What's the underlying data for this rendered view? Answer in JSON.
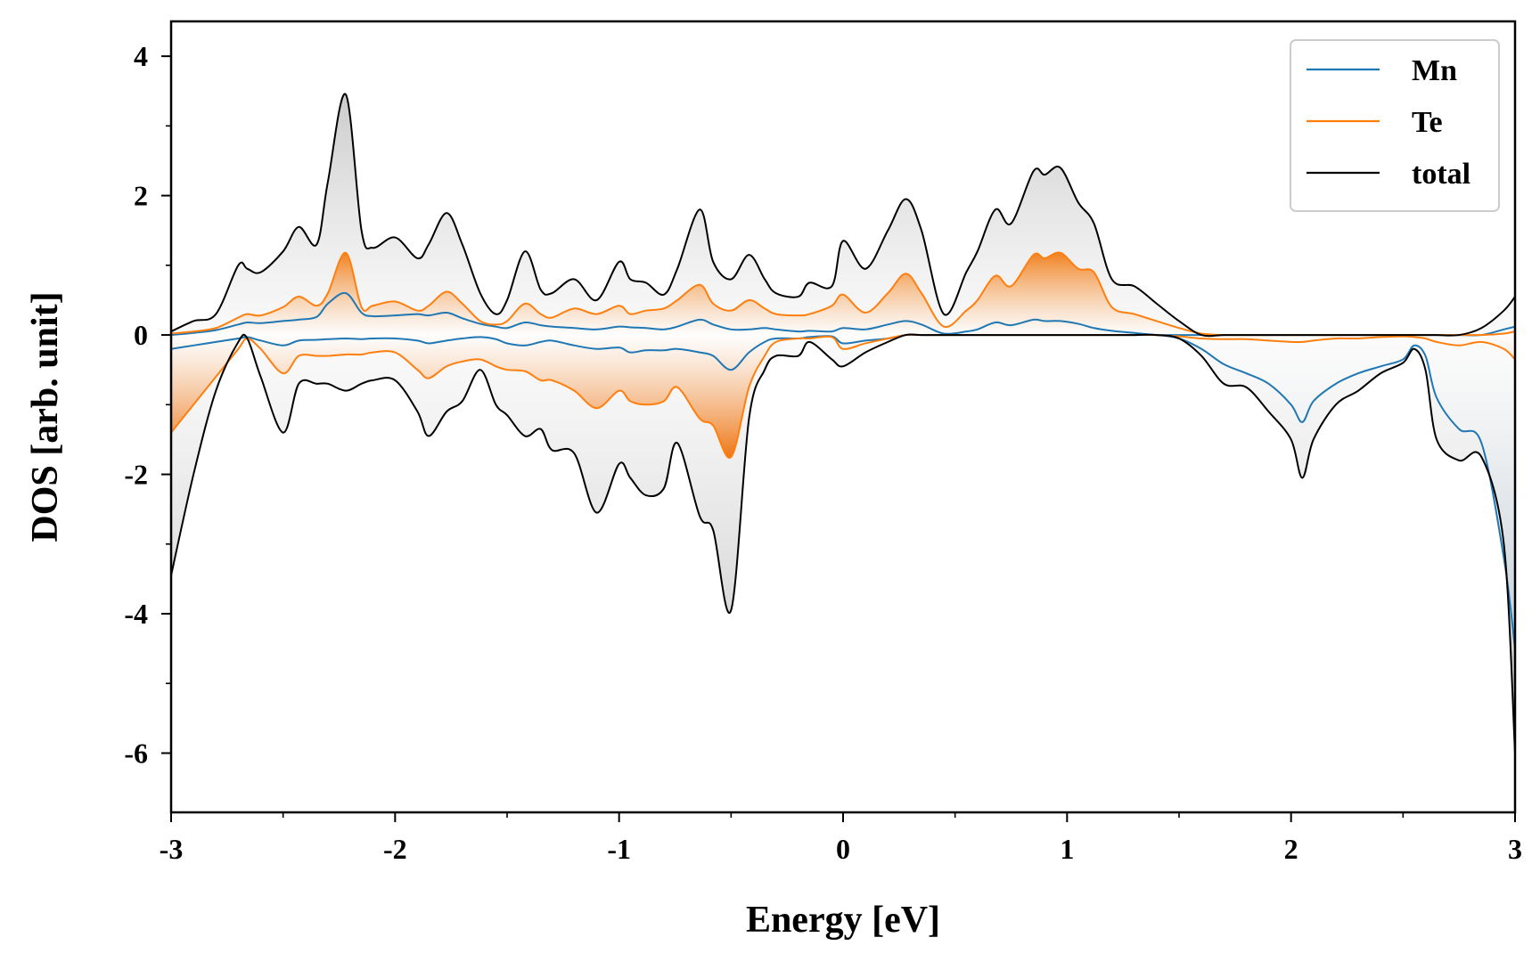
{
  "chart_data": {
    "type": "line",
    "title": "",
    "xlabel": "Energy [eV]",
    "ylabel": "DOS [arb. unit]",
    "xlim": [
      -3,
      3
    ],
    "ylim": [
      -6.85,
      4.5
    ],
    "xticks": [
      -3,
      -2,
      -1,
      0,
      1,
      2,
      3
    ],
    "xtick_labels": [
      "-3",
      "-2",
      "-1",
      "0",
      "1",
      "2",
      "3"
    ],
    "yticks": [
      -6,
      -4,
      -2,
      0,
      2,
      4
    ],
    "ytick_labels": [
      "-6",
      "-4",
      "-2",
      "0",
      "2",
      "4"
    ],
    "legend_position": "top-right",
    "x": [
      -3.0,
      -2.9,
      -2.8,
      -2.7,
      -2.66,
      -2.6,
      -2.5,
      -2.43,
      -2.35,
      -2.3,
      -2.22,
      -2.15,
      -2.1,
      -2.0,
      -1.9,
      -1.85,
      -1.77,
      -1.7,
      -1.62,
      -1.55,
      -1.5,
      -1.42,
      -1.35,
      -1.3,
      -1.2,
      -1.1,
      -1.0,
      -0.95,
      -0.88,
      -0.8,
      -0.74,
      -0.64,
      -0.58,
      -0.5,
      -0.42,
      -0.35,
      -0.3,
      -0.2,
      -0.15,
      -0.05,
      0.0,
      0.1,
      0.2,
      0.28,
      0.35,
      0.45,
      0.55,
      0.6,
      0.68,
      0.75,
      0.85,
      0.9,
      0.97,
      1.05,
      1.12,
      1.2,
      1.3,
      1.4,
      1.5,
      1.6,
      1.7,
      1.8,
      1.9,
      2.0,
      2.05,
      2.1,
      2.2,
      2.3,
      2.4,
      2.5,
      2.55,
      2.6,
      2.65,
      2.75,
      2.85,
      2.95,
      3.0
    ],
    "series": [
      {
        "name": "Mn",
        "color": "#1f77b4",
        "up": [
          0.0,
          0.03,
          0.07,
          0.15,
          0.18,
          0.17,
          0.2,
          0.22,
          0.26,
          0.45,
          0.6,
          0.32,
          0.27,
          0.28,
          0.3,
          0.28,
          0.32,
          0.24,
          0.16,
          0.12,
          0.1,
          0.18,
          0.14,
          0.12,
          0.1,
          0.08,
          0.12,
          0.11,
          0.1,
          0.08,
          0.12,
          0.22,
          0.15,
          0.08,
          0.08,
          0.1,
          0.08,
          0.05,
          0.06,
          0.05,
          0.1,
          0.08,
          0.15,
          0.2,
          0.15,
          0.02,
          0.05,
          0.08,
          0.18,
          0.14,
          0.22,
          0.2,
          0.2,
          0.16,
          0.1,
          0.06,
          0.03,
          0.0,
          0.0,
          0.0,
          0.0,
          0.0,
          0.0,
          0.0,
          0.0,
          0.0,
          0.0,
          0.0,
          0.0,
          0.0,
          0.0,
          0.0,
          0.0,
          0.0,
          0.0,
          0.08,
          0.12
        ],
        "down": [
          -0.2,
          -0.15,
          -0.1,
          -0.05,
          -0.03,
          -0.08,
          -0.15,
          -0.08,
          -0.07,
          -0.06,
          -0.05,
          -0.06,
          -0.05,
          -0.05,
          -0.08,
          -0.12,
          -0.08,
          -0.05,
          -0.03,
          -0.06,
          -0.12,
          -0.15,
          -0.1,
          -0.08,
          -0.15,
          -0.2,
          -0.18,
          -0.25,
          -0.22,
          -0.22,
          -0.2,
          -0.25,
          -0.3,
          -0.5,
          -0.25,
          -0.1,
          -0.05,
          -0.05,
          -0.03,
          -0.02,
          -0.12,
          -0.08,
          -0.05,
          0.0,
          0.0,
          0.0,
          0.0,
          0.0,
          0.0,
          0.0,
          0.0,
          0.0,
          0.0,
          0.0,
          0.0,
          0.0,
          0.0,
          0.0,
          -0.05,
          -0.2,
          -0.42,
          -0.55,
          -0.7,
          -1.0,
          -1.25,
          -0.95,
          -0.7,
          -0.55,
          -0.45,
          -0.35,
          -0.15,
          -0.3,
          -0.9,
          -1.35,
          -1.55,
          -3.2,
          -4.5
        ]
      },
      {
        "name": "Te",
        "color": "#ff7f0e",
        "up": [
          0.02,
          0.05,
          0.1,
          0.25,
          0.3,
          0.28,
          0.4,
          0.55,
          0.42,
          0.6,
          1.18,
          0.4,
          0.42,
          0.48,
          0.35,
          0.42,
          0.62,
          0.45,
          0.2,
          0.15,
          0.2,
          0.45,
          0.3,
          0.25,
          0.38,
          0.3,
          0.42,
          0.3,
          0.35,
          0.38,
          0.5,
          0.72,
          0.45,
          0.35,
          0.5,
          0.38,
          0.3,
          0.28,
          0.3,
          0.42,
          0.58,
          0.32,
          0.6,
          0.88,
          0.6,
          0.12,
          0.35,
          0.5,
          0.85,
          0.7,
          1.15,
          1.1,
          1.18,
          0.95,
          0.9,
          0.4,
          0.3,
          0.2,
          0.1,
          0.02,
          0.0,
          0.0,
          0.0,
          0.0,
          0.0,
          0.0,
          0.0,
          0.0,
          0.0,
          0.0,
          0.0,
          0.0,
          0.0,
          0.0,
          0.0,
          0.02,
          0.05
        ],
        "down": [
          -1.4,
          -1.0,
          -0.6,
          -0.2,
          -0.05,
          -0.2,
          -0.55,
          -0.3,
          -0.3,
          -0.3,
          -0.28,
          -0.28,
          -0.25,
          -0.25,
          -0.5,
          -0.62,
          -0.45,
          -0.38,
          -0.35,
          -0.45,
          -0.5,
          -0.52,
          -0.65,
          -0.65,
          -0.8,
          -1.05,
          -0.8,
          -0.95,
          -1.0,
          -0.95,
          -0.75,
          -1.2,
          -1.3,
          -1.75,
          -0.75,
          -0.3,
          -0.1,
          -0.05,
          -0.05,
          -0.03,
          -0.2,
          -0.12,
          -0.05,
          0.0,
          0.0,
          0.0,
          0.0,
          0.0,
          0.0,
          0.0,
          0.0,
          0.0,
          0.0,
          0.0,
          0.0,
          0.0,
          0.0,
          0.0,
          -0.02,
          -0.05,
          -0.06,
          -0.06,
          -0.08,
          -0.1,
          -0.1,
          -0.08,
          -0.05,
          -0.05,
          -0.03,
          -0.02,
          -0.03,
          -0.05,
          -0.1,
          -0.15,
          -0.1,
          -0.2,
          -0.35
        ]
      },
      {
        "name": "total",
        "color": "#000000",
        "up": [
          0.05,
          0.2,
          0.3,
          1.0,
          0.95,
          0.9,
          1.2,
          1.55,
          1.3,
          2.2,
          3.45,
          1.5,
          1.25,
          1.4,
          1.1,
          1.3,
          1.75,
          1.3,
          0.6,
          0.3,
          0.5,
          1.2,
          0.65,
          0.6,
          0.8,
          0.5,
          1.05,
          0.8,
          0.75,
          0.58,
          0.95,
          1.8,
          1.05,
          0.8,
          1.15,
          0.8,
          0.6,
          0.55,
          0.75,
          0.7,
          1.35,
          0.95,
          1.5,
          1.95,
          1.5,
          0.3,
          0.9,
          1.2,
          1.8,
          1.6,
          2.35,
          2.3,
          2.4,
          1.9,
          1.6,
          0.8,
          0.7,
          0.45,
          0.2,
          0.0,
          0.0,
          0.0,
          0.0,
          0.0,
          0.0,
          0.0,
          0.0,
          0.0,
          0.0,
          0.0,
          0.0,
          0.0,
          0.0,
          0.0,
          0.1,
          0.35,
          0.55
        ],
        "down": [
          -3.45,
          -2.0,
          -0.8,
          -0.1,
          -0.05,
          -0.6,
          -1.4,
          -0.7,
          -0.7,
          -0.7,
          -0.8,
          -0.7,
          -0.65,
          -0.65,
          -1.1,
          -1.45,
          -1.1,
          -0.95,
          -0.5,
          -1.0,
          -1.15,
          -1.45,
          -1.35,
          -1.65,
          -1.7,
          -2.55,
          -1.85,
          -2.05,
          -2.3,
          -2.2,
          -1.55,
          -2.6,
          -2.8,
          -3.95,
          -1.2,
          -0.5,
          -0.3,
          -0.3,
          -0.1,
          -0.35,
          -0.45,
          -0.25,
          -0.1,
          0.0,
          0.0,
          0.0,
          0.0,
          0.0,
          0.0,
          0.0,
          0.0,
          0.0,
          0.0,
          0.0,
          0.0,
          0.0,
          0.0,
          0.0,
          -0.05,
          -0.3,
          -0.7,
          -0.75,
          -1.1,
          -1.5,
          -2.05,
          -1.5,
          -1.0,
          -0.8,
          -0.55,
          -0.4,
          -0.2,
          -0.5,
          -1.5,
          -1.8,
          -1.75,
          -3.0,
          -6.0
        ]
      }
    ]
  }
}
